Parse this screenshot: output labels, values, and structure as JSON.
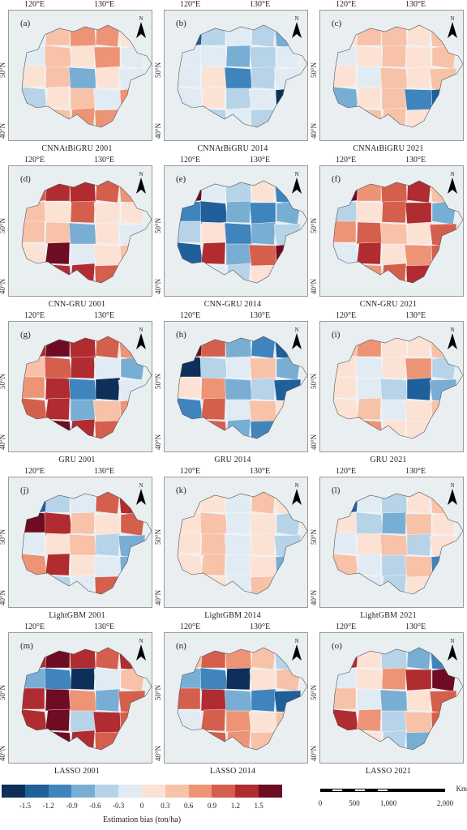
{
  "axes": {
    "lon_labels": [
      "120°E",
      "130°E"
    ],
    "lat_labels": [
      "50°N",
      "40°N"
    ]
  },
  "north_label": "N",
  "palette": [
    "#0d2f59",
    "#1f5f9a",
    "#3f84bd",
    "#79aed4",
    "#b6d3e8",
    "#e0ebf4",
    "#fbe2d5",
    "#f7c2a8",
    "#ee9476",
    "#d45f4d",
    "#b02c30",
    "#6d0c22"
  ],
  "panels": [
    {
      "id": "a",
      "label": "(a)",
      "caption": "CNNAtBiGRU 2001",
      "colors": [
        5,
        7,
        8,
        8,
        6,
        5,
        7,
        6,
        8,
        5,
        6,
        7,
        3,
        6,
        5,
        4,
        6,
        7,
        5,
        8
      ]
    },
    {
      "id": "b",
      "label": "(b)",
      "caption": "CNNAtBiGRU 2014",
      "colors": [
        1,
        4,
        5,
        4,
        3,
        5,
        5,
        3,
        4,
        5,
        5,
        6,
        2,
        4,
        5,
        5,
        6,
        4,
        5,
        0
      ]
    },
    {
      "id": "c",
      "label": "(c)",
      "caption": "CNNAtBiGRU 2021",
      "colors": [
        6,
        7,
        7,
        6,
        7,
        5,
        6,
        7,
        6,
        7,
        6,
        5,
        7,
        6,
        7,
        3,
        6,
        7,
        2,
        1
      ]
    },
    {
      "id": "d",
      "label": "(d)",
      "caption": "CNN-GRU 2001",
      "colors": [
        9,
        10,
        10,
        9,
        8,
        7,
        6,
        9,
        6,
        6,
        7,
        7,
        3,
        6,
        5,
        6,
        11,
        5,
        6,
        7
      ]
    },
    {
      "id": "e",
      "label": "(e)",
      "caption": "CNN-GRU 2014",
      "colors": [
        11,
        5,
        4,
        6,
        2,
        2,
        1,
        3,
        2,
        3,
        4,
        6,
        2,
        3,
        4,
        1,
        10,
        3,
        9,
        11
      ]
    },
    {
      "id": "f",
      "label": "(f)",
      "caption": "CNN-GRU 2021",
      "colors": [
        11,
        8,
        9,
        10,
        7,
        4,
        6,
        9,
        10,
        3,
        8,
        9,
        7,
        6,
        9,
        5,
        10,
        6,
        8,
        9
      ]
    },
    {
      "id": "g",
      "label": "(g)",
      "caption": "GRU 2001",
      "colors": [
        10,
        11,
        10,
        9,
        8,
        7,
        9,
        10,
        5,
        3,
        8,
        10,
        2,
        0,
        5,
        9,
        10,
        3,
        7,
        8
      ]
    },
    {
      "id": "h",
      "label": "(h)",
      "caption": "GRU 2014",
      "colors": [
        11,
        9,
        3,
        2,
        1,
        0,
        4,
        5,
        7,
        3,
        6,
        8,
        3,
        4,
        1,
        2,
        9,
        5,
        7,
        6
      ]
    },
    {
      "id": "i",
      "label": "(i)",
      "caption": "GRU 2021",
      "colors": [
        7,
        8,
        6,
        6,
        7,
        6,
        5,
        6,
        8,
        4,
        6,
        5,
        4,
        1,
        3,
        6,
        7,
        5,
        6,
        7
      ]
    },
    {
      "id": "j",
      "label": "(j)",
      "caption": "LightGBM 2001",
      "colors": [
        1,
        4,
        5,
        9,
        10,
        11,
        10,
        7,
        6,
        9,
        5,
        6,
        7,
        4,
        3,
        8,
        10,
        6,
        5,
        3
      ]
    },
    {
      "id": "k",
      "label": "(k)",
      "caption": "LightGBM 2014",
      "colors": [
        6,
        6,
        5,
        7,
        6,
        6,
        7,
        5,
        6,
        4,
        6,
        7,
        5,
        6,
        4,
        6,
        7,
        5,
        6,
        3
      ]
    },
    {
      "id": "l",
      "label": "(l)",
      "caption": "LightGBM 2021",
      "colors": [
        1,
        5,
        4,
        6,
        7,
        6,
        4,
        3,
        7,
        6,
        5,
        6,
        7,
        4,
        6,
        7,
        5,
        4,
        7,
        2
      ]
    },
    {
      "id": "m",
      "label": "(m)",
      "caption": "LASSO 2001",
      "colors": [
        10,
        11,
        10,
        9,
        10,
        3,
        2,
        0,
        5,
        7,
        10,
        11,
        8,
        3,
        9,
        10,
        11,
        4,
        10,
        9
      ]
    },
    {
      "id": "n",
      "label": "(n)",
      "caption": "LASSO 2014",
      "colors": [
        7,
        9,
        8,
        7,
        4,
        3,
        2,
        0,
        6,
        7,
        9,
        10,
        3,
        2,
        1,
        5,
        9,
        8,
        6,
        7
      ]
    },
    {
      "id": "o",
      "label": "(o)",
      "caption": "LASSO 2021",
      "colors": [
        10,
        6,
        4,
        3,
        2,
        5,
        6,
        8,
        10,
        11,
        7,
        5,
        3,
        6,
        9,
        10,
        8,
        4,
        7,
        9
      ]
    }
  ],
  "legend": {
    "title": "Estimation bias (ton/ha)",
    "ticks": [
      "-1.5",
      "-1.2",
      "-0.9",
      "-0.6",
      "-0.3",
      "0",
      "0.3",
      "0.6",
      "0.9",
      "1.2",
      "1.5"
    ]
  },
  "scalebar": {
    "unit": "Km",
    "labels": [
      "0",
      "500",
      "1,000",
      "2,000"
    ]
  }
}
